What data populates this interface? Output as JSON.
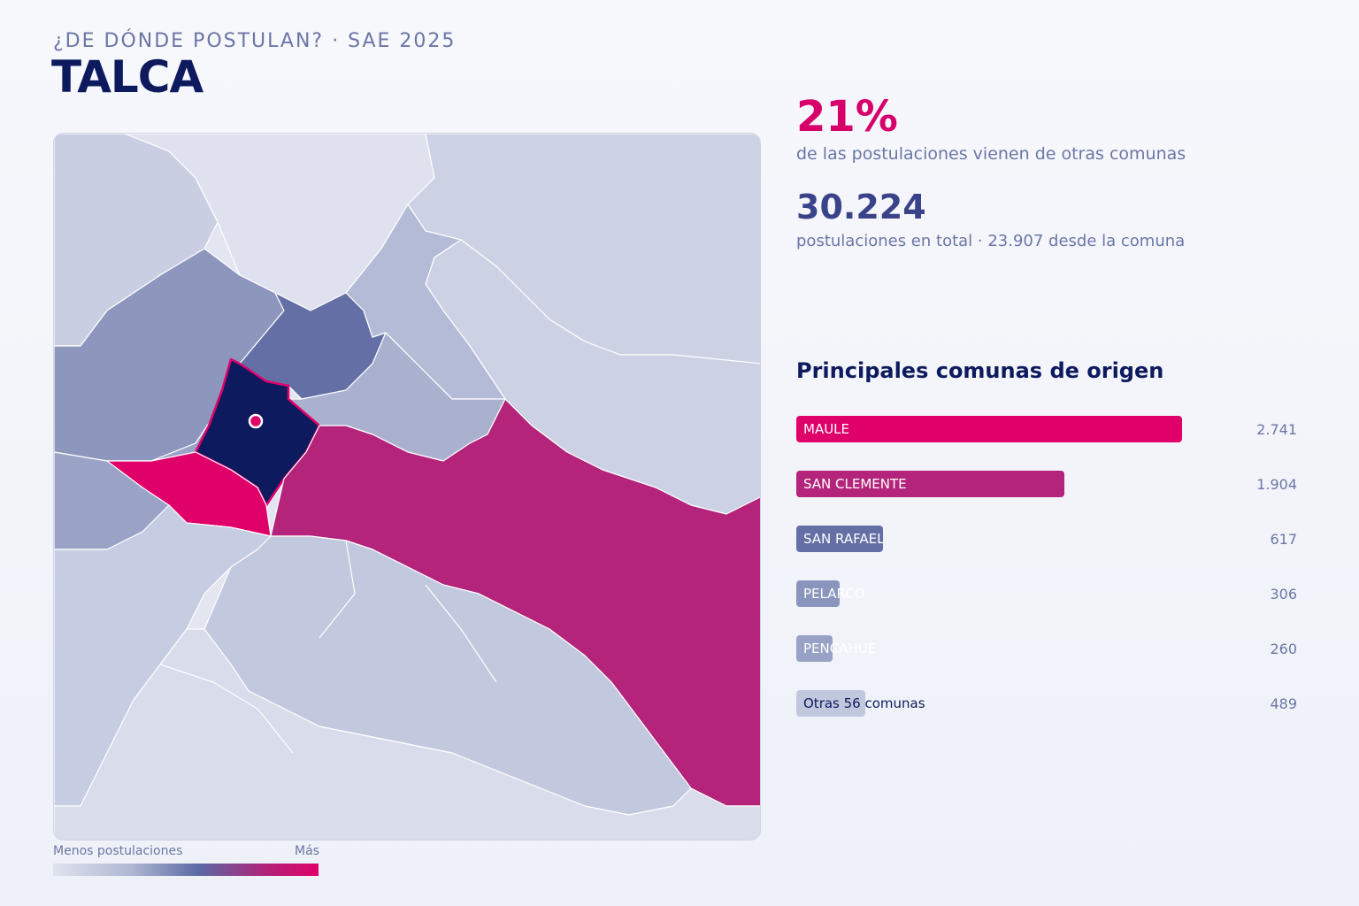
{
  "header": {
    "kicker": "¿DE DÓNDE POSTULAN? · SAE 2025",
    "title": "TALCA"
  },
  "stats": {
    "pct": "21%",
    "pct_label": "de las postulaciones vienen de otras comunas",
    "total": "30.224",
    "total_label": "postulaciones en total · 23.907 desde la comuna"
  },
  "ranking": {
    "title": "Principales comunas de origen",
    "max_value": 2741,
    "items": [
      {
        "label": "MAULE",
        "value": 2741,
        "value_text": "2.741",
        "color": "#e0006a",
        "dark_label": false
      },
      {
        "label": "SAN CLEMENTE",
        "value": 1904,
        "value_text": "1.904",
        "color": "#b3247a",
        "dark_label": false
      },
      {
        "label": "SAN RAFAEL",
        "value": 617,
        "value_text": "617",
        "color": "#6470a5",
        "dark_label": false
      },
      {
        "label": "PELARCO",
        "value": 306,
        "value_text": "306",
        "color": "#8a95bd",
        "dark_label": false
      },
      {
        "label": "PENCAHUE",
        "value": 260,
        "value_text": "260",
        "color": "#98a2c6",
        "dark_label": false
      },
      {
        "label": "Otras 56 comunas",
        "value": 489,
        "value_text": "489",
        "color": "#c1c8de",
        "dark_label": true
      }
    ]
  },
  "legend": {
    "low": "Menos postulaciones",
    "high": "Más"
  },
  "colors": {
    "accent": "#e0006a",
    "highlight_region": "#0d1a5e",
    "text_muted": "#6b76a6"
  }
}
